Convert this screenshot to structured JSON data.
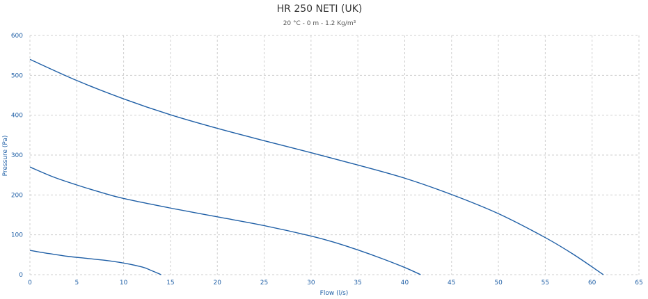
{
  "chart_data": {
    "type": "line",
    "title": "HR 250 NETI (UK)",
    "subtitle": "20 °C - 0 m - 1.2 Kg/m³",
    "xlabel": "Flow (l/s)",
    "ylabel": "Pressure (Pa)",
    "xlim": [
      0,
      65
    ],
    "ylim": [
      0,
      600
    ],
    "xticks": [
      0,
      5,
      10,
      15,
      20,
      25,
      30,
      35,
      40,
      45,
      50,
      55,
      60,
      65
    ],
    "yticks": [
      0,
      100,
      200,
      300,
      400,
      500,
      600
    ],
    "grid": true,
    "colors": {
      "series": "#1f5fa6",
      "grid": "#cfcfcf"
    },
    "series": [
      {
        "x": [
          0,
          2,
          4,
          6,
          8,
          10,
          12,
          13,
          14
        ],
        "y": [
          61,
          53,
          46,
          41,
          36,
          29,
          19,
          10,
          0
        ]
      },
      {
        "x": [
          0,
          2.5,
          5,
          7.5,
          10,
          15,
          20,
          25,
          30,
          32.5,
          35,
          37.5,
          40,
          41.7
        ],
        "y": [
          270,
          245,
          225,
          207,
          191,
          167,
          145,
          123,
          97,
          81,
          62,
          41,
          18,
          0
        ]
      },
      {
        "x": [
          0,
          5,
          10,
          15,
          20,
          25,
          30,
          35,
          40,
          45,
          50,
          55,
          58,
          61.2
        ],
        "y": [
          540,
          487,
          441,
          401,
          367,
          336,
          306,
          275,
          242,
          201,
          153,
          93,
          51,
          0
        ]
      }
    ]
  }
}
